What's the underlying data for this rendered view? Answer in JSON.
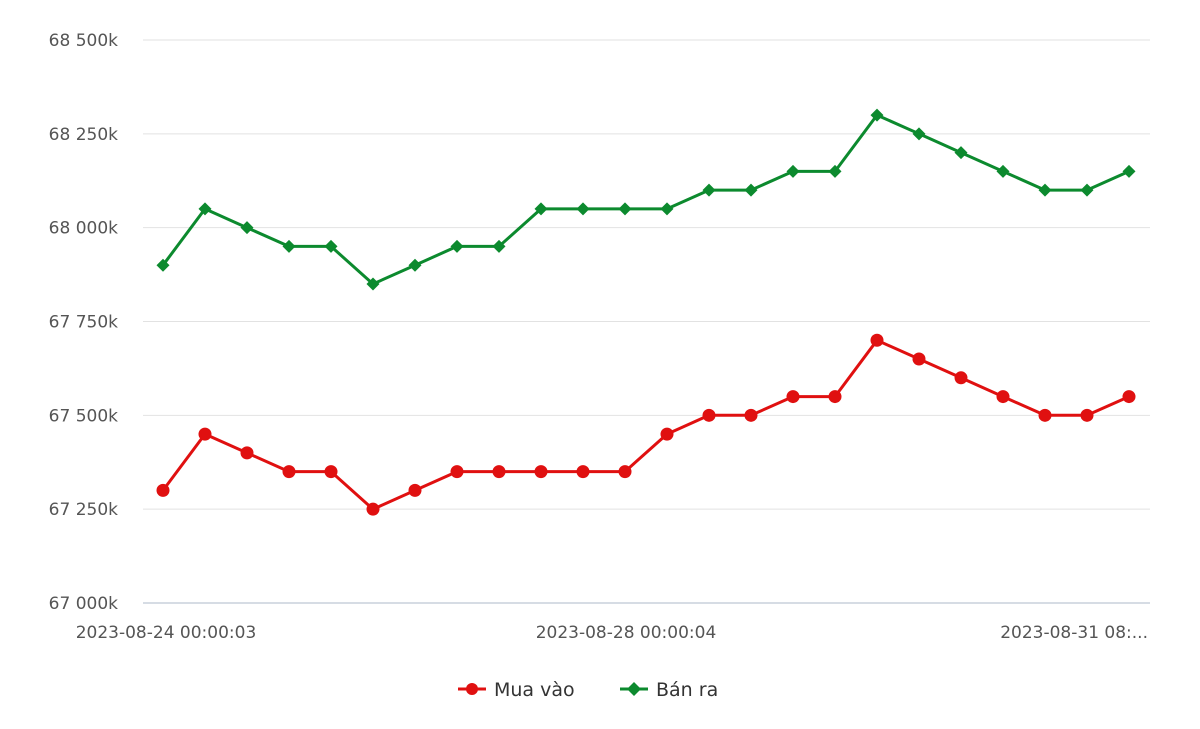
{
  "chart_data": {
    "type": "line",
    "title": "",
    "xlabel": "",
    "ylabel": "",
    "ylim": [
      67000000,
      68500000
    ],
    "y_ticks": [
      {
        "value": 67000000,
        "label": "67 000k"
      },
      {
        "value": 67250000,
        "label": "67 250k"
      },
      {
        "value": 67500000,
        "label": "67 500k"
      },
      {
        "value": 67750000,
        "label": "67 750k"
      },
      {
        "value": 68000000,
        "label": "68 000k"
      },
      {
        "value": 68250000,
        "label": "68 250k"
      },
      {
        "value": 68500000,
        "label": "68 500k"
      }
    ],
    "x_tick_labels": [
      "2023-08-24 00:00:03",
      "2023-08-28 00:00:04",
      "2023-08-31 08:..."
    ],
    "grid": true,
    "legend_position": "bottom-center",
    "colors": {
      "buy": "#e01010",
      "sell": "#0c8a2e"
    },
    "series": [
      {
        "name": "Mua vào",
        "marker": "circle",
        "values": [
          67300000,
          67450000,
          67400000,
          67350000,
          67350000,
          67250000,
          67300000,
          67350000,
          67350000,
          67350000,
          67350000,
          67350000,
          67450000,
          67500000,
          67500000,
          67550000,
          67550000,
          67700000,
          67650000,
          67600000,
          67550000,
          67500000,
          67500000,
          67550000
        ]
      },
      {
        "name": "Bán ra",
        "marker": "diamond",
        "values": [
          67900000,
          68050000,
          68000000,
          67950000,
          67950000,
          67850000,
          67900000,
          67950000,
          67950000,
          68050000,
          68050000,
          68050000,
          68050000,
          68100000,
          68100000,
          68150000,
          68150000,
          68300000,
          68250000,
          68200000,
          68150000,
          68100000,
          68100000,
          68150000
        ]
      }
    ]
  }
}
